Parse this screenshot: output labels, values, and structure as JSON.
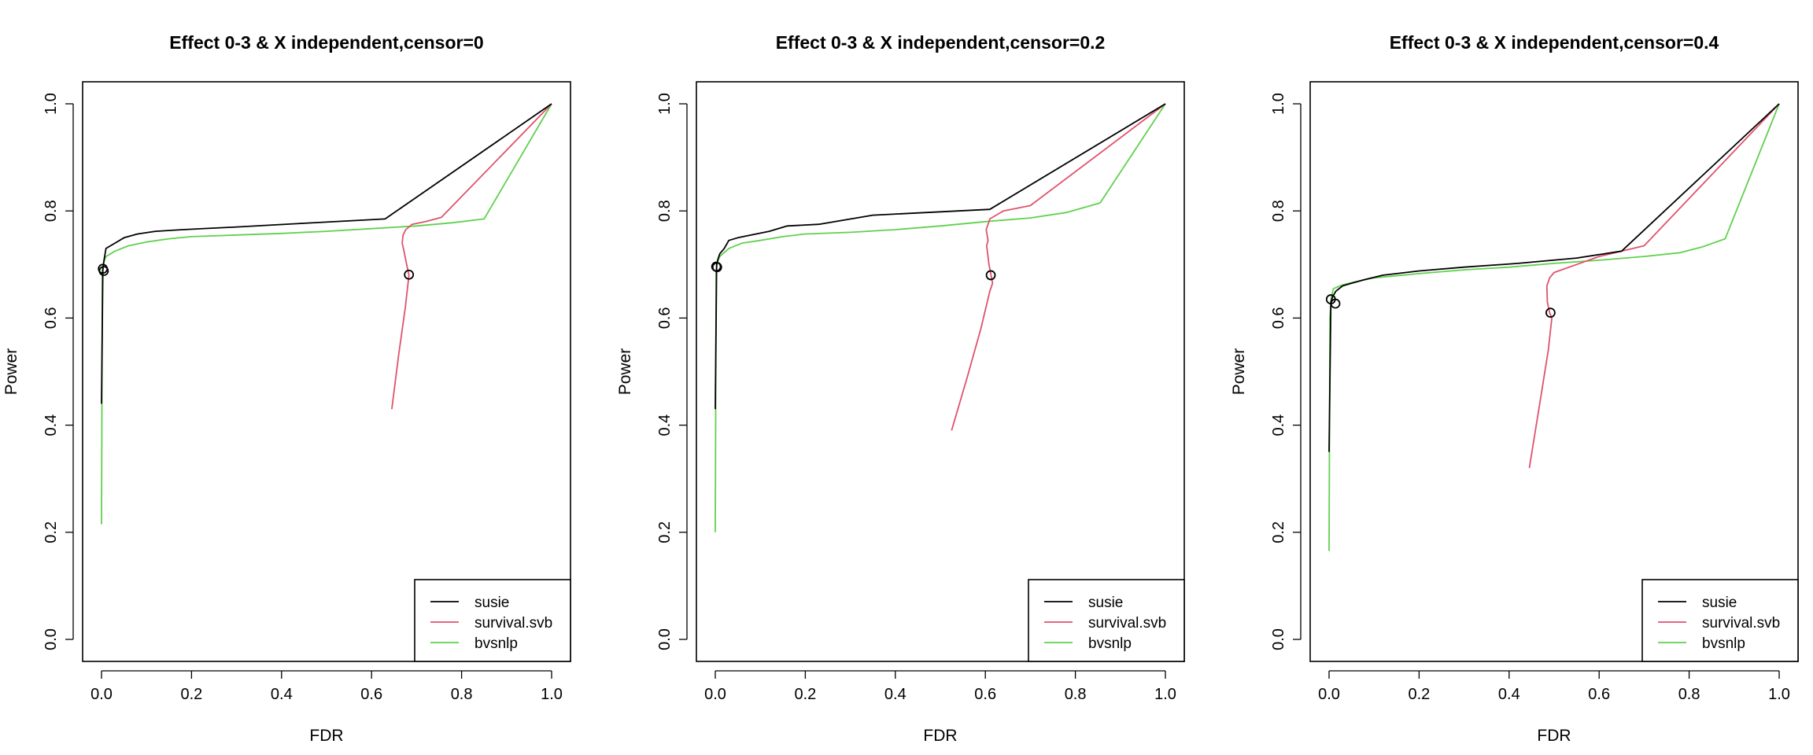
{
  "chart_data": [
    {
      "type": "line",
      "title": "Effect 0-3 & X independent,censor=0",
      "xlabel": "FDR",
      "ylabel": "Power",
      "xlim": [
        0,
        1
      ],
      "ylim": [
        0,
        1
      ],
      "xticks": [
        "0.0",
        "0.2",
        "0.4",
        "0.6",
        "0.8",
        "1.0"
      ],
      "yticks": [
        "0.0",
        "0.2",
        "0.4",
        "0.6",
        "0.8",
        "1.0"
      ],
      "grid": false,
      "legend_position": "bottom-right",
      "series": [
        {
          "name": "susie",
          "color": "#000000",
          "x": [
            0.0,
            0.003,
            0.006,
            0.01,
            0.02,
            0.03,
            0.05,
            0.08,
            0.12,
            0.18,
            0.3,
            0.45,
            0.63,
            1.0
          ],
          "y": [
            0.44,
            0.69,
            0.71,
            0.73,
            0.735,
            0.74,
            0.75,
            0.757,
            0.762,
            0.765,
            0.77,
            0.777,
            0.785,
            1.0
          ]
        },
        {
          "name": "survival.svb",
          "color": "#DF536B",
          "x": [
            0.645,
            0.66,
            0.675,
            0.683,
            0.678,
            0.672,
            0.668,
            0.67,
            0.676,
            0.69,
            0.72,
            0.755,
            1.0
          ],
          "y": [
            0.43,
            0.53,
            0.62,
            0.68,
            0.7,
            0.725,
            0.74,
            0.755,
            0.765,
            0.775,
            0.78,
            0.788,
            1.0
          ]
        },
        {
          "name": "bvsnlp",
          "color": "#61D04F",
          "x": [
            0.0,
            0.002,
            0.005,
            0.01,
            0.03,
            0.06,
            0.1,
            0.15,
            0.2,
            0.3,
            0.4,
            0.5,
            0.6,
            0.7,
            0.78,
            0.85,
            1.0
          ],
          "y": [
            0.215,
            0.69,
            0.705,
            0.715,
            0.725,
            0.735,
            0.742,
            0.748,
            0.752,
            0.755,
            0.758,
            0.762,
            0.767,
            0.772,
            0.778,
            0.785,
            1.0
          ]
        }
      ],
      "markers": [
        {
          "x": 0.003,
          "y": 0.692
        },
        {
          "x": 0.005,
          "y": 0.688
        },
        {
          "x": 0.683,
          "y": 0.681
        }
      ]
    },
    {
      "type": "line",
      "title": "Effect 0-3 & X independent,censor=0.2",
      "xlabel": "FDR",
      "ylabel": "Power",
      "xlim": [
        0,
        1
      ],
      "ylim": [
        0,
        1
      ],
      "xticks": [
        "0.0",
        "0.2",
        "0.4",
        "0.6",
        "0.8",
        "1.0"
      ],
      "yticks": [
        "0.0",
        "0.2",
        "0.4",
        "0.6",
        "0.8",
        "1.0"
      ],
      "grid": false,
      "legend_position": "bottom-right",
      "series": [
        {
          "name": "susie",
          "color": "#000000",
          "x": [
            0.0,
            0.003,
            0.006,
            0.01,
            0.02,
            0.03,
            0.05,
            0.08,
            0.12,
            0.16,
            0.23,
            0.35,
            0.47,
            0.61,
            1.0
          ],
          "y": [
            0.43,
            0.7,
            0.71,
            0.72,
            0.73,
            0.745,
            0.75,
            0.755,
            0.762,
            0.772,
            0.775,
            0.792,
            0.797,
            0.803,
            1.0
          ]
        },
        {
          "name": "survival.svb",
          "color": "#DF536B",
          "x": [
            0.525,
            0.56,
            0.59,
            0.61,
            0.616,
            0.608,
            0.603,
            0.606,
            0.602,
            0.61,
            0.64,
            0.7,
            1.0
          ],
          "y": [
            0.39,
            0.49,
            0.58,
            0.65,
            0.665,
            0.7,
            0.735,
            0.745,
            0.765,
            0.785,
            0.8,
            0.81,
            1.0
          ]
        },
        {
          "name": "bvsnlp",
          "color": "#61D04F",
          "x": [
            0.0,
            0.002,
            0.005,
            0.01,
            0.03,
            0.06,
            0.1,
            0.15,
            0.2,
            0.3,
            0.4,
            0.5,
            0.6,
            0.7,
            0.78,
            0.855,
            1.0
          ],
          "y": [
            0.2,
            0.69,
            0.705,
            0.715,
            0.73,
            0.74,
            0.745,
            0.752,
            0.757,
            0.76,
            0.765,
            0.772,
            0.78,
            0.787,
            0.797,
            0.815,
            1.0
          ]
        }
      ],
      "markers": [
        {
          "x": 0.002,
          "y": 0.696
        },
        {
          "x": 0.004,
          "y": 0.695
        },
        {
          "x": 0.612,
          "y": 0.68
        }
      ]
    },
    {
      "type": "line",
      "title": "Effect 0-3 & X independent,censor=0.4",
      "xlabel": "FDR",
      "ylabel": "Power",
      "xlim": [
        0,
        1
      ],
      "ylim": [
        0,
        1
      ],
      "xticks": [
        "0.0",
        "0.2",
        "0.4",
        "0.6",
        "0.8",
        "1.0"
      ],
      "yticks": [
        "0.0",
        "0.2",
        "0.4",
        "0.6",
        "0.8",
        "1.0"
      ],
      "grid": false,
      "legend_position": "bottom-right",
      "series": [
        {
          "name": "susie",
          "color": "#000000",
          "x": [
            0.0,
            0.004,
            0.008,
            0.015,
            0.03,
            0.05,
            0.08,
            0.12,
            0.2,
            0.3,
            0.42,
            0.55,
            0.65,
            1.0
          ],
          "y": [
            0.35,
            0.63,
            0.64,
            0.65,
            0.66,
            0.665,
            0.672,
            0.68,
            0.688,
            0.695,
            0.702,
            0.712,
            0.725,
            1.0
          ]
        },
        {
          "name": "survival.svb",
          "color": "#DF536B",
          "x": [
            0.445,
            0.47,
            0.487,
            0.495,
            0.49,
            0.485,
            0.484,
            0.49,
            0.5,
            0.55,
            0.6,
            0.7,
            1.0
          ],
          "y": [
            0.32,
            0.45,
            0.54,
            0.6,
            0.61,
            0.63,
            0.66,
            0.675,
            0.685,
            0.7,
            0.715,
            0.735,
            1.0
          ]
        },
        {
          "name": "bvsnlp",
          "color": "#61D04F",
          "x": [
            0.0,
            0.002,
            0.005,
            0.01,
            0.03,
            0.06,
            0.1,
            0.2,
            0.3,
            0.4,
            0.5,
            0.6,
            0.7,
            0.78,
            0.83,
            0.88,
            1.0
          ],
          "y": [
            0.165,
            0.6,
            0.64,
            0.655,
            0.662,
            0.668,
            0.675,
            0.683,
            0.69,
            0.695,
            0.702,
            0.708,
            0.715,
            0.722,
            0.733,
            0.748,
            1.0
          ]
        }
      ],
      "markers": [
        {
          "x": 0.004,
          "y": 0.635
        },
        {
          "x": 0.014,
          "y": 0.627
        },
        {
          "x": 0.492,
          "y": 0.61
        }
      ]
    }
  ]
}
